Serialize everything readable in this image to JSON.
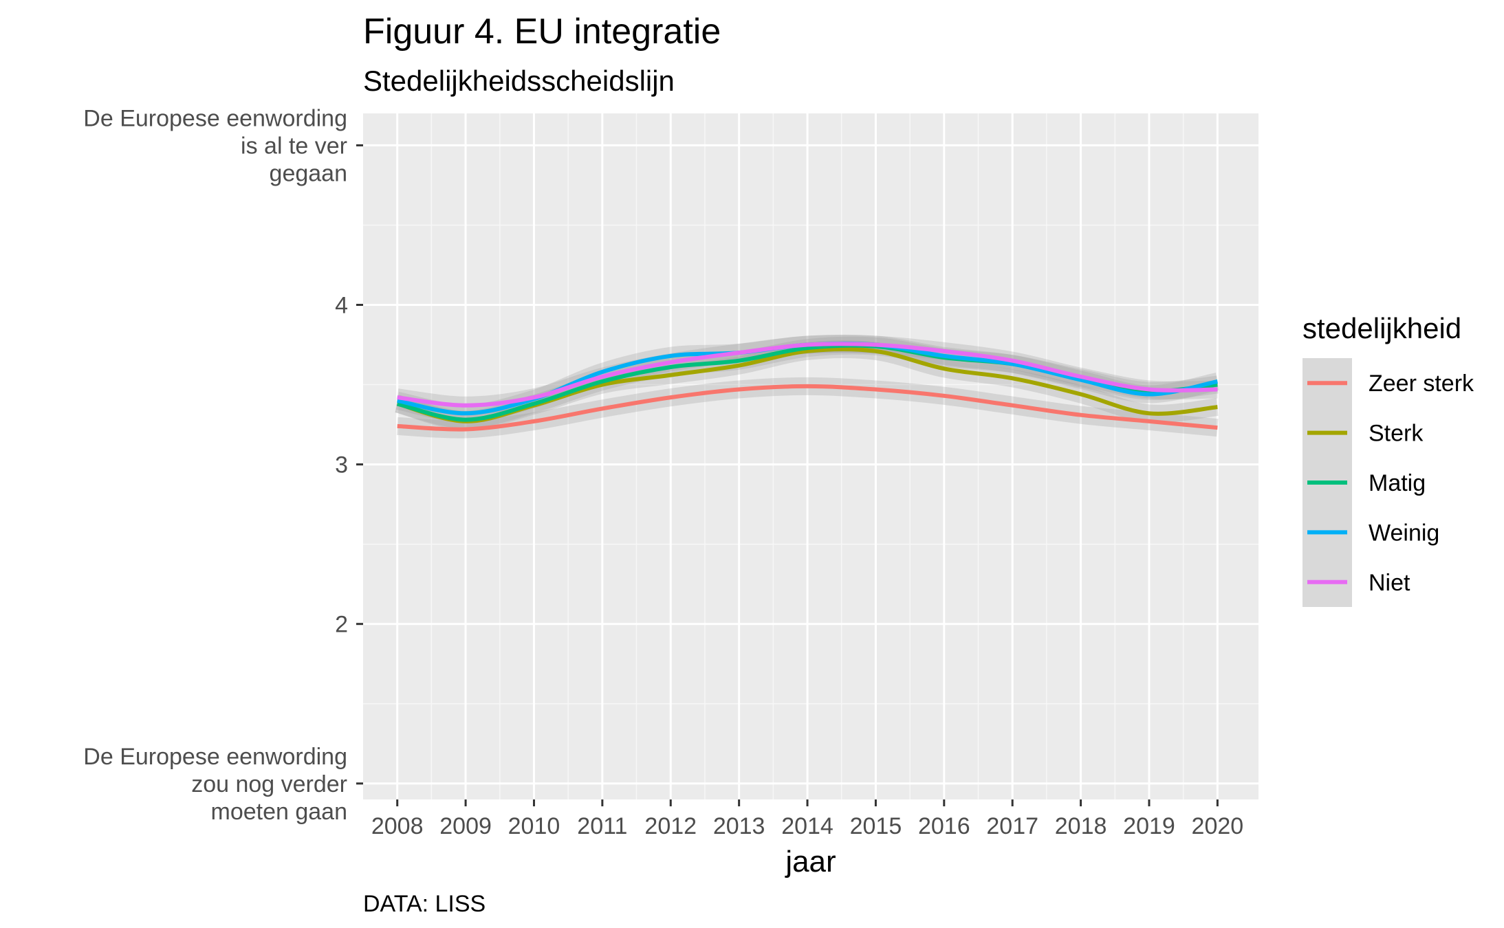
{
  "chart_data": {
    "type": "line",
    "title": "Figuur 4. EU integratie",
    "subtitle": "Stedelijkheidsscheidslijn",
    "caption": "DATA: LISS",
    "xlabel": "jaar",
    "x": [
      2008,
      2009,
      2010,
      2011,
      2012,
      2013,
      2014,
      2015,
      2016,
      2017,
      2018,
      2019,
      2020
    ],
    "xlim": [
      2007.5,
      2020.6
    ],
    "ylim": [
      0.9,
      5.2
    ],
    "y_ticks": [
      {
        "value": 5,
        "lines": [
          "De Europese eenwording",
          "is al te ver",
          "gegaan"
        ]
      },
      {
        "value": 4,
        "lines": [
          "4"
        ]
      },
      {
        "value": 3,
        "lines": [
          "3"
        ]
      },
      {
        "value": 2,
        "lines": [
          "2"
        ]
      },
      {
        "value": 1,
        "lines": [
          "De Europese eenwording",
          "zou nog verder",
          "moeten gaan"
        ]
      }
    ],
    "grid": true,
    "legend": {
      "title": "stedelijkheid",
      "position": "right"
    },
    "series": [
      {
        "name": "Zeer sterk",
        "color": "#F8766D",
        "values": [
          3.24,
          3.22,
          3.27,
          3.35,
          3.42,
          3.47,
          3.49,
          3.47,
          3.43,
          3.37,
          3.31,
          3.27,
          3.23
        ]
      },
      {
        "name": "Sterk",
        "color": "#A3A500",
        "values": [
          3.38,
          3.27,
          3.37,
          3.5,
          3.56,
          3.62,
          3.71,
          3.71,
          3.6,
          3.54,
          3.44,
          3.32,
          3.36
        ]
      },
      {
        "name": "Matig",
        "color": "#00BF7D",
        "values": [
          3.38,
          3.28,
          3.38,
          3.52,
          3.61,
          3.65,
          3.73,
          3.74,
          3.67,
          3.63,
          3.54,
          3.46,
          3.5
        ]
      },
      {
        "name": "Weinig",
        "color": "#00B0F6",
        "values": [
          3.4,
          3.32,
          3.41,
          3.58,
          3.68,
          3.7,
          3.75,
          3.75,
          3.68,
          3.63,
          3.53,
          3.44,
          3.52
        ]
      },
      {
        "name": "Niet",
        "color": "#E76BF3",
        "values": [
          3.42,
          3.37,
          3.42,
          3.55,
          3.64,
          3.7,
          3.75,
          3.75,
          3.71,
          3.65,
          3.55,
          3.47,
          3.47
        ]
      }
    ]
  }
}
